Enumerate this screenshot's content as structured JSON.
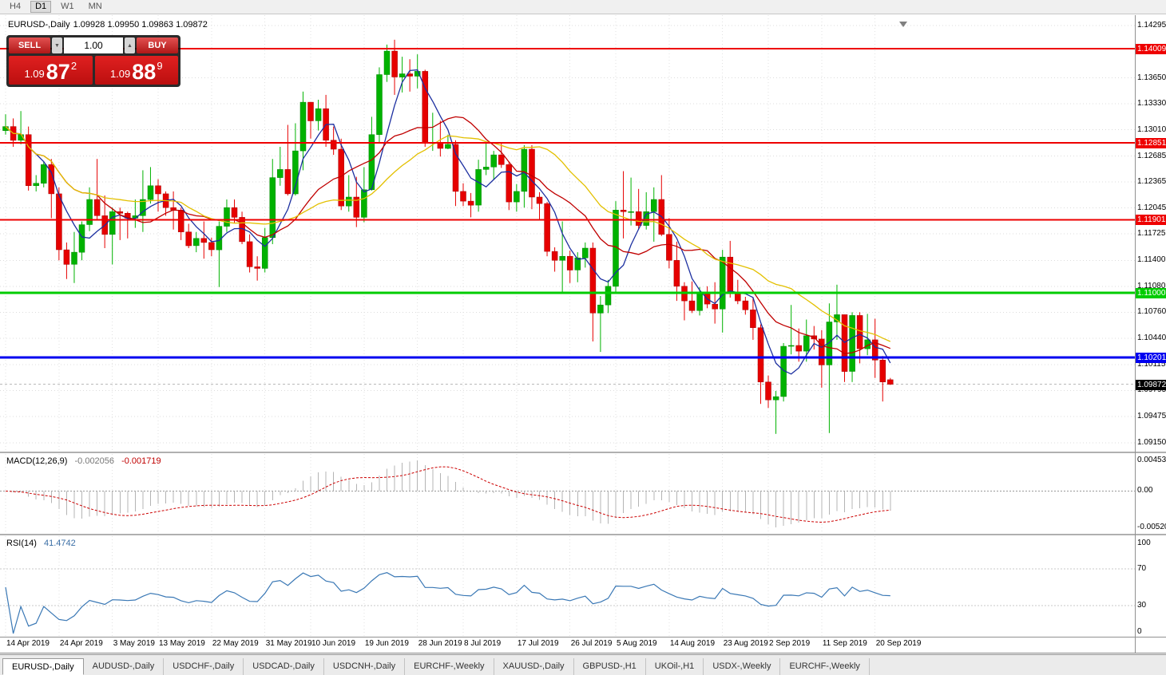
{
  "window": {
    "toolbar_timeframes": [
      "H4",
      "D1",
      "W1",
      "MN"
    ],
    "active_timeframe": "D1"
  },
  "chart_header": {
    "title": "EURUSD-,Daily",
    "ohlc_text": "1.09928 1.09950 1.09863 1.09872"
  },
  "trade_panel": {
    "sell_label": "SELL",
    "buy_label": "BUY",
    "lot_value": "1.00",
    "spin_up_icon": "▲",
    "spin_down_icon": "▼",
    "sell_price": {
      "prefix": "1.09",
      "big": "87",
      "sup": "2"
    },
    "buy_price": {
      "prefix": "1.09",
      "big": "88",
      "sup": "9"
    }
  },
  "chart_data": {
    "type": "candlestick",
    "symbol": "EURUSD-",
    "timeframe": "Daily",
    "current_bar": {
      "open": 1.09928,
      "high": 1.0995,
      "low": 1.09863,
      "close": 1.09872
    },
    "up_color": "#00b200",
    "down_color": "#e60000",
    "price_axis": {
      "min": 1.0915,
      "max": 1.14295,
      "ticks": [
        "1.14295",
        "1.13650",
        "1.13330",
        "1.13010",
        "1.12685",
        "1.12365",
        "1.12045",
        "1.11725",
        "1.11400",
        "1.11080",
        "1.10760",
        "1.10440",
        "1.10115",
        "1.09795",
        "1.09475",
        "1.09150"
      ]
    },
    "hlines": [
      {
        "price": 1.14009,
        "label": "1.14009",
        "color": "#ee0000",
        "width": 2
      },
      {
        "price": 1.12851,
        "label": "1.12851",
        "color": "#ee0000",
        "width": 2
      },
      {
        "price": 1.11901,
        "label": "1.11901",
        "color": "#ee0000",
        "width": 2
      },
      {
        "price": 1.11,
        "label": "1.11000",
        "color": "#00cc00",
        "width": 3
      },
      {
        "price": 1.10201,
        "label": "1.10201",
        "color": "#0000f0",
        "width": 3
      }
    ],
    "bid": {
      "price": 1.09872,
      "label": "1.09872"
    },
    "moving_averages": [
      {
        "period": 5,
        "color": "#1c2fa0"
      },
      {
        "period": 13,
        "color": "#c00000"
      },
      {
        "period": 24,
        "color": "#e3c000"
      }
    ],
    "candles_ohlc": [
      [
        1.13,
        1.132,
        1.1295,
        1.1305
      ],
      [
        1.1305,
        1.1315,
        1.128,
        1.1288
      ],
      [
        1.1288,
        1.1324,
        1.1283,
        1.1295
      ],
      [
        1.1295,
        1.1305,
        1.1226,
        1.1232
      ],
      [
        1.1232,
        1.1245,
        1.1225,
        1.1235
      ],
      [
        1.1235,
        1.1262,
        1.123,
        1.1258
      ],
      [
        1.1258,
        1.1265,
        1.1192,
        1.1222
      ],
      [
        1.1222,
        1.123,
        1.114,
        1.1153
      ],
      [
        1.1153,
        1.1162,
        1.1117,
        1.1135
      ],
      [
        1.1135,
        1.1175,
        1.1112,
        1.115
      ],
      [
        1.115,
        1.1188,
        1.114,
        1.1184
      ],
      [
        1.1184,
        1.123,
        1.1176,
        1.1215
      ],
      [
        1.1215,
        1.1265,
        1.119,
        1.1195
      ],
      [
        1.1195,
        1.122,
        1.1155,
        1.1172
      ],
      [
        1.1172,
        1.1205,
        1.1135,
        1.12
      ],
      [
        1.12,
        1.1205,
        1.1165,
        1.1198
      ],
      [
        1.1198,
        1.12,
        1.1167,
        1.1192
      ],
      [
        1.1192,
        1.1215,
        1.118,
        1.1195
      ],
      [
        1.1195,
        1.1251,
        1.1175,
        1.1215
      ],
      [
        1.1215,
        1.1255,
        1.121,
        1.1232
      ],
      [
        1.1232,
        1.124,
        1.12,
        1.1222
      ],
      [
        1.1222,
        1.1225,
        1.1195,
        1.1205
      ],
      [
        1.1205,
        1.1225,
        1.1178,
        1.1202
      ],
      [
        1.1202,
        1.1205,
        1.1165,
        1.1175
      ],
      [
        1.1175,
        1.1185,
        1.1155,
        1.1158
      ],
      [
        1.1158,
        1.1175,
        1.115,
        1.1167
      ],
      [
        1.1167,
        1.1188,
        1.1142,
        1.1162
      ],
      [
        1.1162,
        1.1168,
        1.1145,
        1.1153
      ],
      [
        1.1153,
        1.1188,
        1.1107,
        1.1182
      ],
      [
        1.1182,
        1.1215,
        1.1175,
        1.1205
      ],
      [
        1.1205,
        1.1215,
        1.1186,
        1.1193
      ],
      [
        1.1193,
        1.12,
        1.116,
        1.1163
      ],
      [
        1.1163,
        1.1172,
        1.1125,
        1.1132
      ],
      [
        1.1132,
        1.1145,
        1.1115,
        1.113
      ],
      [
        1.113,
        1.118,
        1.1125,
        1.1168
      ],
      [
        1.1168,
        1.1265,
        1.116,
        1.1242
      ],
      [
        1.1242,
        1.128,
        1.1232,
        1.1252
      ],
      [
        1.1252,
        1.1307,
        1.122,
        1.1222
      ],
      [
        1.1222,
        1.1309,
        1.122,
        1.1275
      ],
      [
        1.1275,
        1.1348,
        1.1251,
        1.1335
      ],
      [
        1.1335,
        1.1335,
        1.129,
        1.1312
      ],
      [
        1.1312,
        1.1338,
        1.13,
        1.1327
      ],
      [
        1.1327,
        1.1344,
        1.128,
        1.1288
      ],
      [
        1.1288,
        1.1305,
        1.127,
        1.1277
      ],
      [
        1.1277,
        1.129,
        1.1202,
        1.1207
      ],
      [
        1.1207,
        1.1245,
        1.12,
        1.1218
      ],
      [
        1.1218,
        1.1243,
        1.1181,
        1.1193
      ],
      [
        1.1193,
        1.1255,
        1.1187,
        1.1227
      ],
      [
        1.1227,
        1.1317,
        1.1226,
        1.1295
      ],
      [
        1.1295,
        1.1378,
        1.1285,
        1.1369
      ],
      [
        1.1369,
        1.1406,
        1.136,
        1.1398
      ],
      [
        1.1398,
        1.1412,
        1.1344,
        1.1366
      ],
      [
        1.1366,
        1.1391,
        1.1347,
        1.137
      ],
      [
        1.137,
        1.1388,
        1.1348,
        1.1367
      ],
      [
        1.1367,
        1.1394,
        1.1352,
        1.1373
      ],
      [
        1.1373,
        1.1375,
        1.128,
        1.1285
      ],
      [
        1.1285,
        1.1322,
        1.1275,
        1.1285
      ],
      [
        1.1285,
        1.1312,
        1.1268,
        1.1278
      ],
      [
        1.1278,
        1.1295,
        1.1277,
        1.1283
      ],
      [
        1.1283,
        1.1288,
        1.1207,
        1.1225
      ],
      [
        1.1225,
        1.1235,
        1.1207,
        1.1213
      ],
      [
        1.1213,
        1.1223,
        1.1193,
        1.1208
      ],
      [
        1.1208,
        1.1264,
        1.12,
        1.1252
      ],
      [
        1.1252,
        1.1286,
        1.1245,
        1.1255
      ],
      [
        1.1255,
        1.1275,
        1.1239,
        1.127
      ],
      [
        1.127,
        1.1284,
        1.1254,
        1.1258
      ],
      [
        1.1258,
        1.1262,
        1.1202,
        1.1212
      ],
      [
        1.1212,
        1.1234,
        1.12,
        1.1225
      ],
      [
        1.1225,
        1.1282,
        1.1205,
        1.1277
      ],
      [
        1.1277,
        1.1282,
        1.1203,
        1.1218
      ],
      [
        1.1218,
        1.1224,
        1.1189,
        1.121
      ],
      [
        1.121,
        1.1212,
        1.1145,
        1.1151
      ],
      [
        1.1151,
        1.1156,
        1.1126,
        1.114
      ],
      [
        1.114,
        1.1188,
        1.1101,
        1.1145
      ],
      [
        1.1145,
        1.1152,
        1.1112,
        1.1128
      ],
      [
        1.1128,
        1.115,
        1.1113,
        1.1143
      ],
      [
        1.1143,
        1.1162,
        1.1131,
        1.1155
      ],
      [
        1.1155,
        1.1162,
        1.104,
        1.1075
      ],
      [
        1.1075,
        1.1096,
        1.1027,
        1.1085
      ],
      [
        1.1085,
        1.1116,
        1.1075,
        1.1108
      ],
      [
        1.1108,
        1.1213,
        1.1101,
        1.1202
      ],
      [
        1.1202,
        1.125,
        1.1167,
        1.12
      ],
      [
        1.12,
        1.1242,
        1.1183,
        1.12
      ],
      [
        1.12,
        1.1228,
        1.1178,
        1.1183
      ],
      [
        1.1183,
        1.1224,
        1.1178,
        1.12
      ],
      [
        1.12,
        1.123,
        1.1163,
        1.1215
      ],
      [
        1.1215,
        1.1245,
        1.117,
        1.1172
      ],
      [
        1.1172,
        1.1192,
        1.113,
        1.114
      ],
      [
        1.114,
        1.1163,
        1.109,
        1.1108
      ],
      [
        1.1108,
        1.1113,
        1.1066,
        1.109
      ],
      [
        1.109,
        1.1114,
        1.1075,
        1.1078
      ],
      [
        1.1078,
        1.1107,
        1.1072,
        1.11
      ],
      [
        1.11,
        1.1108,
        1.1081,
        1.1086
      ],
      [
        1.1086,
        1.1113,
        1.1062,
        1.108
      ],
      [
        1.108,
        1.1153,
        1.1051,
        1.1144
      ],
      [
        1.1144,
        1.1164,
        1.1094,
        1.1101
      ],
      [
        1.1101,
        1.1116,
        1.1086,
        1.109
      ],
      [
        1.109,
        1.1095,
        1.1073,
        1.1079
      ],
      [
        1.1079,
        1.1094,
        1.1042,
        1.1057
      ],
      [
        1.1057,
        1.1061,
        1.0963,
        1.099
      ],
      [
        1.099,
        1.0998,
        1.0958,
        1.0968
      ],
      [
        1.0968,
        1.0979,
        1.0926,
        1.0972
      ],
      [
        1.0972,
        1.1038,
        1.0966,
        1.1034
      ],
      [
        1.1034,
        1.1085,
        1.1024,
        1.1035
      ],
      [
        1.1035,
        1.1056,
        1.1015,
        1.1028
      ],
      [
        1.1028,
        1.1067,
        1.1015,
        1.1047
      ],
      [
        1.1047,
        1.1059,
        1.103,
        1.1043
      ],
      [
        1.1043,
        1.1054,
        1.0983,
        1.1011
      ],
      [
        1.1011,
        1.1087,
        1.0927,
        1.1064
      ],
      [
        1.1064,
        1.111,
        1.1042,
        1.1073
      ],
      [
        1.1073,
        1.1073,
        1.099,
        1.1003
      ],
      [
        1.1003,
        1.1076,
        1.099,
        1.1072
      ],
      [
        1.1072,
        1.1076,
        1.1013,
        1.1031
      ],
      [
        1.1031,
        1.1074,
        1.1023,
        1.1042
      ],
      [
        1.1042,
        1.1068,
        1.0995,
        1.1017
      ],
      [
        1.1017,
        1.1022,
        1.0966,
        1.099
      ],
      [
        1.09928,
        1.0995,
        1.09863,
        1.09872
      ]
    ],
    "date_labels": [
      {
        "text": "14 Apr 2019",
        "i": 0
      },
      {
        "text": "24 Apr 2019",
        "i": 7
      },
      {
        "text": "3 May 2019",
        "i": 14
      },
      {
        "text": "13 May 2019",
        "i": 20
      },
      {
        "text": "22 May 2019",
        "i": 27
      },
      {
        "text": "31 May 2019",
        "i": 34
      },
      {
        "text": "10 Jun 2019",
        "i": 40
      },
      {
        "text": "19 Jun 2019",
        "i": 47
      },
      {
        "text": "28 Jun 2019",
        "i": 54
      },
      {
        "text": "8 Jul 2019",
        "i": 60
      },
      {
        "text": "17 Jul 2019",
        "i": 67
      },
      {
        "text": "26 Jul 2019",
        "i": 74
      },
      {
        "text": "5 Aug 2019",
        "i": 80
      },
      {
        "text": "14 Aug 2019",
        "i": 87
      },
      {
        "text": "23 Aug 2019",
        "i": 94
      },
      {
        "text": "2 Sep 2019",
        "i": 100
      },
      {
        "text": "11 Sep 2019",
        "i": 107
      },
      {
        "text": "20 Sep 2019",
        "i": 114
      }
    ],
    "indicators": {
      "macd": {
        "name": "MACD(12,26,9)",
        "value_main": "-0.002056",
        "value_signal": "-0.001719",
        "fast": 12,
        "slow": 26,
        "signal": 9,
        "axis_top": "0.004536",
        "axis_zero": "0.00",
        "axis_bottom": "-0.005205",
        "hist_color": "#b4b4b4",
        "signal_color": "#cc0000"
      },
      "rsi": {
        "name": "RSI(14)",
        "value": "41.4742",
        "period": 14,
        "axis": [
          "100",
          "70",
          "30",
          "0"
        ],
        "levels": [
          70,
          30
        ],
        "line_color": "#3a78b5"
      }
    }
  },
  "tabs": {
    "items": [
      "EURUSD-,Daily",
      "AUDUSD-,Daily",
      "USDCHF-,Daily",
      "USDCAD-,Daily",
      "USDCNH-,Daily",
      "EURCHF-,Weekly",
      "XAUUSD-,Daily",
      "GBPUSD-,H1",
      "UKOil-,H1",
      "USDX-,Weekly",
      "EURCHF-,Weekly"
    ],
    "active_index": 0
  }
}
